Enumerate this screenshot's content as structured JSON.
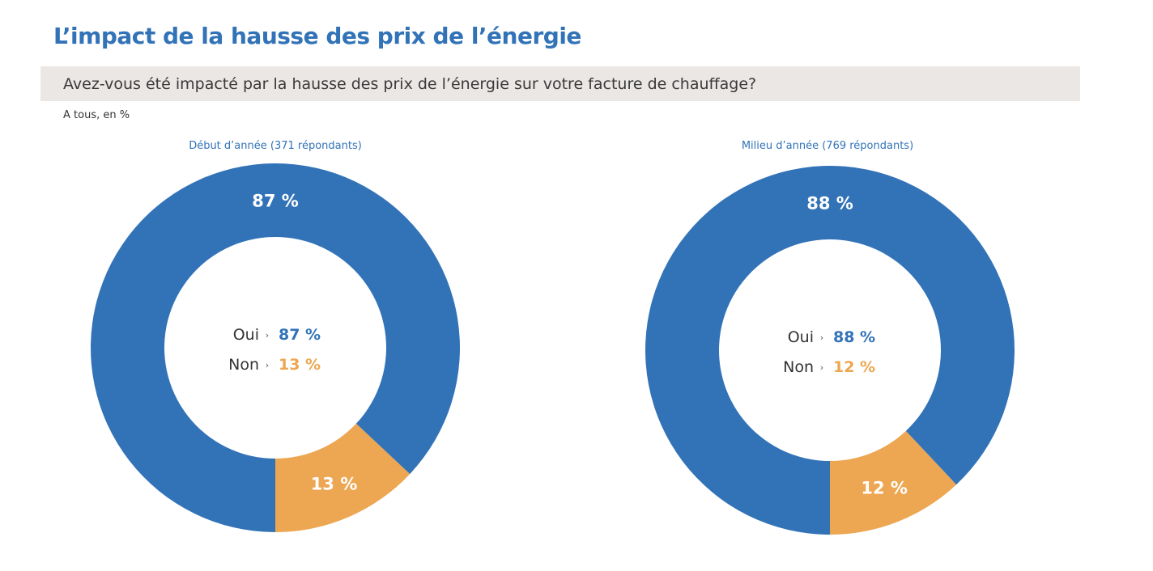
{
  "title": "L’impact de la hausse des prix de l’énergie",
  "question": "Avez-vous été impacté par la hausse des prix de l’énergie sur votre facture de chauffage?",
  "base": "A tous, en %",
  "colors": {
    "oui": "#3273b8",
    "non": "#eda651",
    "band": "#ebe7e5"
  },
  "chart_data": [
    {
      "type": "pie",
      "title": "Début d’année (371 répondants)",
      "categories": [
        "Oui",
        "Non"
      ],
      "values": [
        87,
        13
      ],
      "labels": [
        "87 %",
        "13 %"
      ],
      "center_separator": "›"
    },
    {
      "type": "pie",
      "title": "Milieu d’année (769 répondants)",
      "categories": [
        "Oui",
        "Non"
      ],
      "values": [
        88,
        12
      ],
      "labels": [
        "88 %",
        "12 %"
      ],
      "center_separator": "›"
    }
  ]
}
